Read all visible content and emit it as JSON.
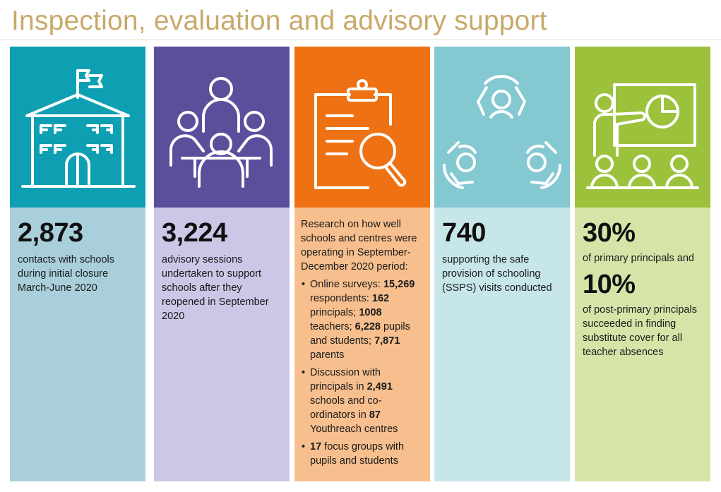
{
  "title": "Inspection, evaluation and advisory support",
  "colors": {
    "title": "#c9a96a",
    "col1_top": "#0e9fb3",
    "col1_bottom": "#a9cfdb",
    "col2_top": "#5b4f9c",
    "col2_bottom": "#cdc6e6",
    "col3_top": "#ee7214",
    "col3_bottom": "#f7bf8e",
    "col4_top": "#84c8d1",
    "col4_bottom": "#c7e6ea",
    "col5_top": "#9cc23c",
    "col5_bottom": "#d5e5a8"
  },
  "columns": [
    {
      "icon": "school-building-icon",
      "stat": "2,873",
      "text": "contacts with schools during initial closure March-June 2020"
    },
    {
      "icon": "meeting-group-icon",
      "stat": "3,224",
      "text": "advisory sessions undertaken to support schools after they reopened in September 2020"
    },
    {
      "icon": "clipboard-magnifier-icon",
      "intro": "Research on how well schools and centres were operating in September-December 2020 period:",
      "bullets": [
        {
          "parts": [
            {
              "t": "Online surveys: ",
              "b": false
            },
            {
              "t": "15,269",
              "b": true
            },
            {
              "t": " respondents: ",
              "b": false
            },
            {
              "t": "162",
              "b": true
            },
            {
              "t": " principals; ",
              "b": false
            },
            {
              "t": "1008",
              "b": true
            },
            {
              "t": " teachers; ",
              "b": false
            },
            {
              "t": "6,228",
              "b": true
            },
            {
              "t": " pupils and students; ",
              "b": false
            },
            {
              "t": "7,871",
              "b": true
            },
            {
              "t": " parents",
              "b": false
            }
          ]
        },
        {
          "parts": [
            {
              "t": "Discussion with principals in ",
              "b": false
            },
            {
              "t": "2,491",
              "b": true
            },
            {
              "t": " schools and co-ordinators in ",
              "b": false
            },
            {
              "t": "87",
              "b": true
            },
            {
              "t": " Youthreach centres",
              "b": false
            }
          ]
        },
        {
          "parts": [
            {
              "t": "17",
              "b": true
            },
            {
              "t": " focus groups with pupils and students",
              "b": false
            }
          ]
        }
      ]
    },
    {
      "icon": "people-cycle-icon",
      "stat": "740",
      "text": "supporting the safe provision of schooling (SSPS) visits conducted"
    },
    {
      "icon": "presenter-classroom-icon",
      "stat": "30%",
      "text": "of primary principals and",
      "stat2": "10%",
      "text2": "of post-primary principals succeeded in finding substitute cover for all teacher absences"
    }
  ]
}
